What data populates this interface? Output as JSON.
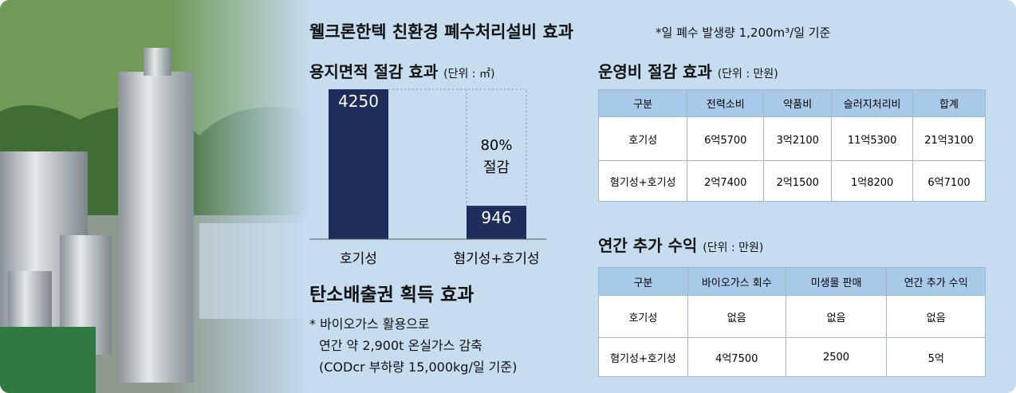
{
  "header": {
    "title": "웰크론한텍 친환경 폐수처리설비 효과",
    "note": "*일 폐수 발생량 1,200m³/일 기준"
  },
  "chart_data": {
    "type": "bar",
    "title": "용지면적 절감 효과",
    "unit": "(단위 : ㎡)",
    "categories": [
      "호기성",
      "혐기성+호기성"
    ],
    "values": [
      4250,
      946
    ],
    "color": "#1f2d5c",
    "annotation": [
      "80%",
      "절감"
    ]
  },
  "carbon": {
    "title": "탄소배출권 획득 효과",
    "lines": [
      "* 바이오가스 활용으로",
      "연간 약 2,900t 온실가스 감축",
      "(CODcr 부하량 15,000kg/일 기준)"
    ]
  },
  "cost": {
    "title": "운영비 절감 효과",
    "unit": "(단위 : 만원)",
    "table": {
      "header": [
        "구분",
        "전력소비",
        "약품비",
        "슬러지처리비",
        "합계"
      ],
      "rows": [
        [
          "호기성",
          "6억5700",
          "3억2100",
          "11억5300",
          "21억3100"
        ],
        [
          "혐기성+호기성",
          "2억7400",
          "2억1500",
          "1억8200",
          "6억7100"
        ]
      ]
    }
  },
  "revenue": {
    "title": "연간 추가 수익",
    "unit": "(단위 : 만원)",
    "table": {
      "header": [
        "구분",
        "바이오가스 회수",
        "미생물 판매",
        "연간 추가 수익"
      ],
      "rows": [
        [
          "호기성",
          "없음",
          "없음",
          "없음"
        ],
        [
          "혐기성+호기성",
          "4억7500",
          "2500",
          "5억"
        ]
      ]
    }
  }
}
